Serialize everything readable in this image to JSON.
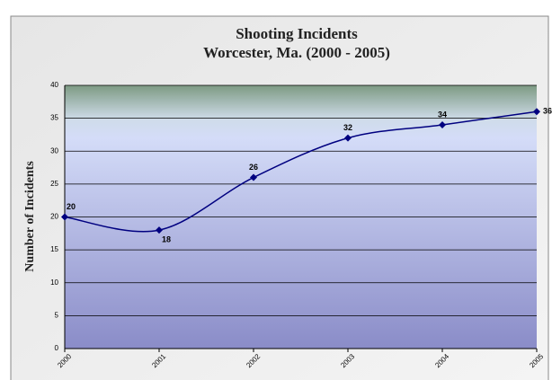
{
  "chart_data": {
    "type": "line",
    "title": [
      "Shooting Incidents",
      "Worcester, Ma. (2000 - 2005)"
    ],
    "y_label": "Number of Incidents",
    "categories": [
      "2000",
      "2001",
      "2002",
      "2003",
      "2004",
      "2005"
    ],
    "series": [
      {
        "name": "Shooting Incidents",
        "color": "#000080",
        "values": [
          20,
          18,
          26,
          32,
          34,
          36
        ]
      }
    ],
    "ylim": [
      0,
      40
    ],
    "yticks": [
      0,
      5,
      10,
      15,
      20,
      25,
      30,
      35,
      40
    ],
    "grid": true,
    "smooth": true
  }
}
